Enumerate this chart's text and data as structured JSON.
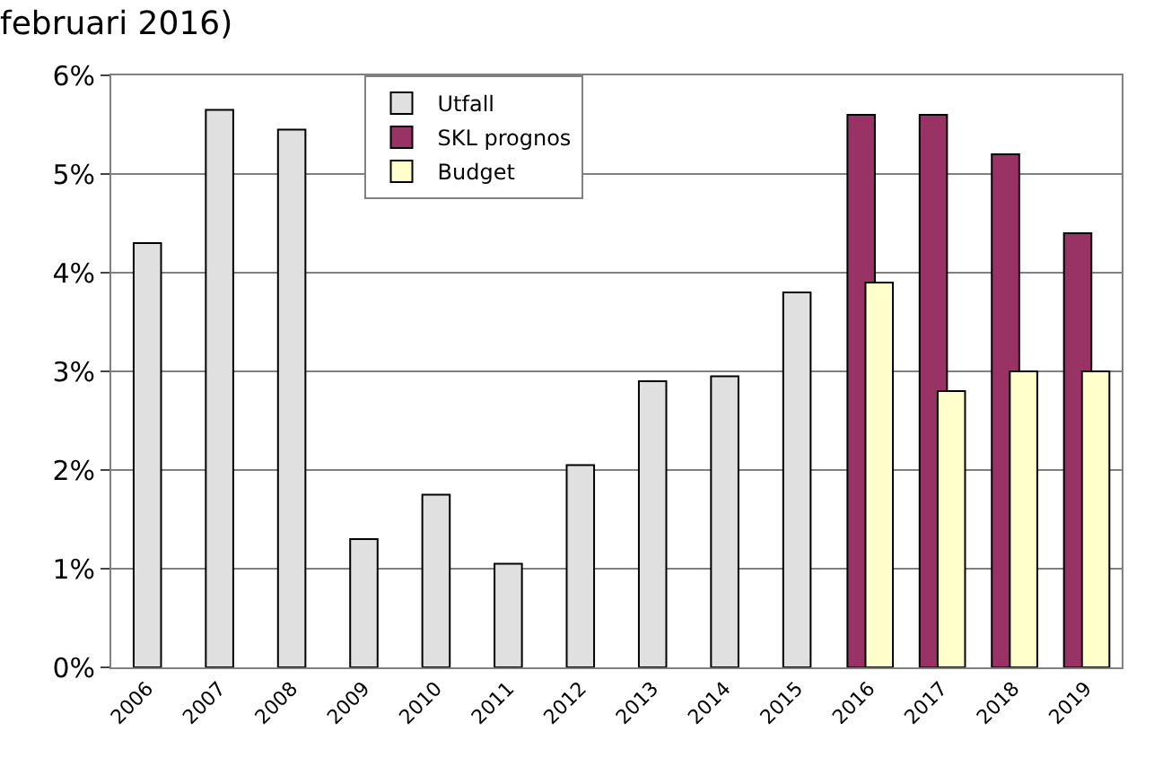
{
  "chart_data": {
    "type": "bar",
    "title": "februari 2016)",
    "categories": [
      "2006",
      "2007",
      "2008",
      "2009",
      "2010",
      "2011",
      "2012",
      "2013",
      "2014",
      "2015",
      "2016",
      "2017",
      "2018",
      "2019"
    ],
    "series": [
      {
        "name": "Utfall",
        "color": "#e0e0e0",
        "values": [
          4.3,
          5.65,
          5.45,
          1.3,
          1.75,
          1.05,
          2.05,
          2.9,
          2.95,
          3.8,
          null,
          null,
          null,
          null
        ]
      },
      {
        "name": "SKL prognos",
        "color": "#993366",
        "values": [
          null,
          null,
          null,
          null,
          null,
          null,
          null,
          null,
          null,
          null,
          5.6,
          5.6,
          5.2,
          4.4
        ]
      },
      {
        "name": "Budget",
        "color": "#ffffcc",
        "values": [
          null,
          null,
          null,
          null,
          null,
          null,
          null,
          null,
          null,
          null,
          3.9,
          2.8,
          3.0,
          3.0
        ]
      }
    ],
    "ylim": [
      0,
      6
    ],
    "yticks": [
      {
        "value": 0,
        "label": "0%"
      },
      {
        "value": 1,
        "label": "1%"
      },
      {
        "value": 2,
        "label": "2%"
      },
      {
        "value": 3,
        "label": "3%"
      },
      {
        "value": 4,
        "label": "4%"
      },
      {
        "value": 5,
        "label": "5%"
      },
      {
        "value": 6,
        "label": "6%"
      }
    ],
    "grid": "y",
    "legend": "top"
  }
}
